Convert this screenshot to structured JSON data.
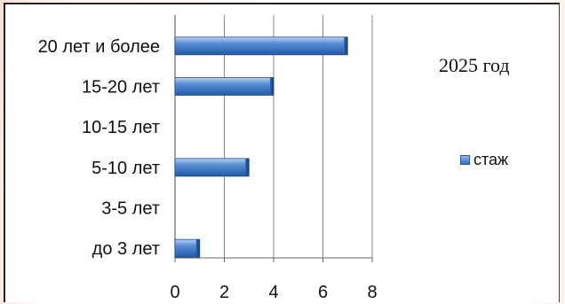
{
  "chart_data": {
    "type": "bar",
    "orientation": "horizontal",
    "title": "2025 год",
    "categories": [
      "20 лет и более",
      "15-20 лет",
      "10-15 лет",
      "5-10 лет",
      "3-5 лет",
      "до 3 лет"
    ],
    "series": [
      {
        "name": "стаж",
        "values": [
          7,
          4,
          0,
          3,
          0,
          1
        ],
        "color": "#3f78c4"
      }
    ],
    "x_ticks": [
      0,
      2,
      4,
      6,
      8
    ],
    "xlim": [
      0,
      8
    ],
    "xlabel": "",
    "ylabel": "",
    "grid": true,
    "legend_position": "right"
  }
}
